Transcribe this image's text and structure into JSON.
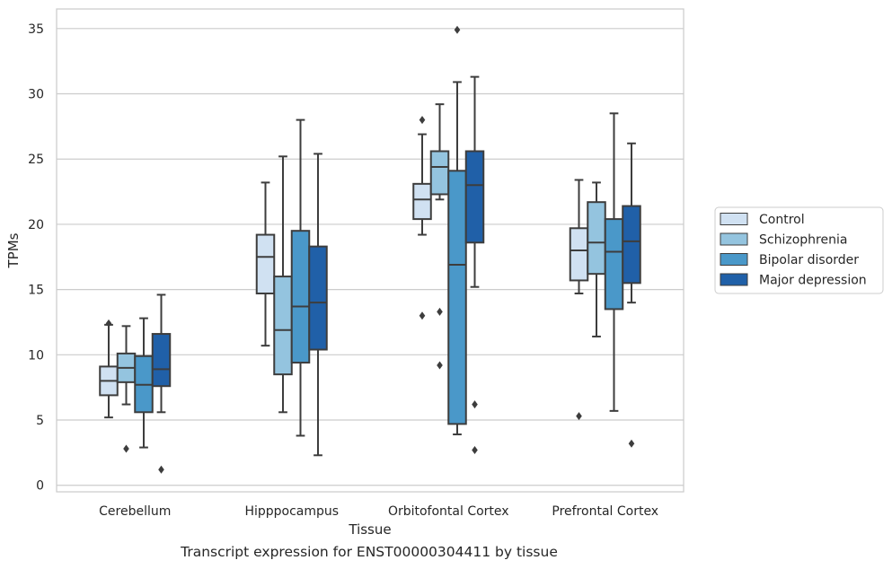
{
  "caption": "Transcript expression for ENST00000304411 by tissue",
  "chart_data": {
    "type": "box",
    "xlabel": "Tissue",
    "ylabel": "TPMs",
    "ylim": [
      -0.5,
      36.5
    ],
    "yticks": [
      0,
      5,
      10,
      15,
      20,
      25,
      30,
      35
    ],
    "grid": "horizontal",
    "legend_position": "right",
    "categories": [
      "Cerebellum",
      "Hipppocampus",
      "Orbitofontal Cortex",
      "Prefrontal Cortex"
    ],
    "series": [
      {
        "name": "Control",
        "color": "#d0e1f2",
        "boxes": [
          {
            "whislo": 5.2,
            "q1": 6.9,
            "med": 8.0,
            "q3": 9.1,
            "whishi": 12.3,
            "fliers": [
              12.4
            ]
          },
          {
            "whislo": 10.7,
            "q1": 14.7,
            "med": 17.5,
            "q3": 19.2,
            "whishi": 23.2,
            "fliers": []
          },
          {
            "whislo": 19.2,
            "q1": 20.4,
            "med": 21.9,
            "q3": 23.1,
            "whishi": 26.9,
            "fliers": [
              28.0,
              13.0
            ]
          },
          {
            "whislo": 14.7,
            "q1": 15.7,
            "med": 18.0,
            "q3": 19.7,
            "whishi": 23.4,
            "fliers": [
              5.3
            ]
          }
        ]
      },
      {
        "name": "Schizophrenia",
        "color": "#94c4df",
        "boxes": [
          {
            "whislo": 6.2,
            "q1": 7.9,
            "med": 9.0,
            "q3": 10.1,
            "whishi": 12.2,
            "fliers": [
              2.8
            ]
          },
          {
            "whislo": 5.6,
            "q1": 8.5,
            "med": 11.9,
            "q3": 16.0,
            "whishi": 25.2,
            "fliers": []
          },
          {
            "whislo": 21.9,
            "q1": 22.3,
            "med": 24.4,
            "q3": 25.6,
            "whishi": 29.2,
            "fliers": [
              13.3,
              9.2
            ]
          },
          {
            "whislo": 11.4,
            "q1": 16.2,
            "med": 18.6,
            "q3": 21.7,
            "whishi": 23.2,
            "fliers": []
          }
        ]
      },
      {
        "name": "Bipolar disorder",
        "color": "#4a98c9",
        "boxes": [
          {
            "whislo": 2.9,
            "q1": 5.6,
            "med": 7.7,
            "q3": 9.9,
            "whishi": 12.8,
            "fliers": []
          },
          {
            "whislo": 3.8,
            "q1": 9.4,
            "med": 13.7,
            "q3": 19.5,
            "whishi": 28.0,
            "fliers": []
          },
          {
            "whislo": 3.9,
            "q1": 4.7,
            "med": 16.9,
            "q3": 24.1,
            "whishi": 30.9,
            "fliers": [
              34.9
            ]
          },
          {
            "whislo": 5.7,
            "q1": 13.5,
            "med": 17.9,
            "q3": 20.4,
            "whishi": 28.5,
            "fliers": []
          }
        ]
      },
      {
        "name": "Major depression",
        "color": "#2060a8",
        "boxes": [
          {
            "whislo": 5.6,
            "q1": 7.6,
            "med": 8.9,
            "q3": 11.6,
            "whishi": 14.6,
            "fliers": [
              1.2
            ]
          },
          {
            "whislo": 2.3,
            "q1": 10.4,
            "med": 14.0,
            "q3": 18.3,
            "whishi": 25.4,
            "fliers": []
          },
          {
            "whislo": 15.2,
            "q1": 18.6,
            "med": 23.0,
            "q3": 25.6,
            "whishi": 31.3,
            "fliers": [
              6.2,
              2.7
            ]
          },
          {
            "whislo": 14.0,
            "q1": 15.5,
            "med": 18.7,
            "q3": 21.4,
            "whishi": 26.2,
            "fliers": [
              3.2
            ]
          }
        ]
      }
    ]
  }
}
